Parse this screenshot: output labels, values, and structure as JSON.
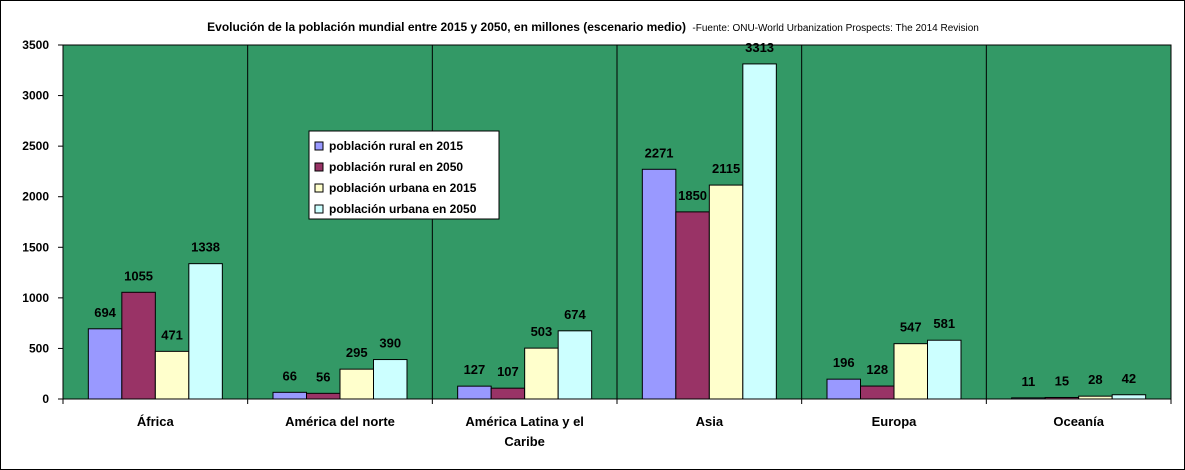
{
  "chart_data": {
    "type": "bar",
    "title": "Evolución de la población mundial entre 2015 y 2050, en millones (escenario medio)",
    "subtitle": "-Fuente: ONU-World Urbanization Prospects: The 2014 Revision",
    "xlabel": "",
    "ylabel": "",
    "categories": [
      "África",
      "América del norte",
      "América Latina y el Caribe",
      "Asia",
      "Europa",
      "Oceanía"
    ],
    "series": [
      {
        "name": "población rural en 2015",
        "color": "#9999ff",
        "values": [
          694,
          66,
          127,
          2271,
          196,
          11
        ]
      },
      {
        "name": "población rural en 2050",
        "color": "#993366",
        "values": [
          1055,
          56,
          107,
          1850,
          128,
          15
        ]
      },
      {
        "name": "población urbana en 2015",
        "color": "#ffffcc",
        "values": [
          471,
          295,
          503,
          2115,
          547,
          28
        ]
      },
      {
        "name": "población urbana en 2050",
        "color": "#ccffff",
        "values": [
          1338,
          390,
          674,
          3313,
          581,
          42
        ]
      }
    ],
    "ylim": [
      0,
      3500
    ],
    "yticks": [
      0,
      500,
      1000,
      1500,
      2000,
      2500,
      3000,
      3500
    ],
    "plot_background": "#339966",
    "grid": false,
    "category_separators": true,
    "legend_position": "inside-upper-left-center"
  }
}
